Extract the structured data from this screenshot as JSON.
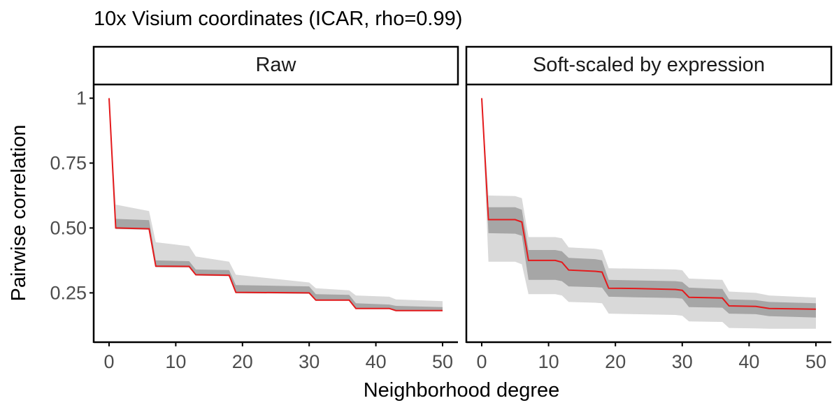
{
  "title": "10x Visium coordinates (ICAR, rho=0.99)",
  "xlabel": "Neighborhood degree",
  "ylabel": "Pairwise correlation",
  "colors": {
    "line": "#e41a1c",
    "inner_band": "#a6a6a6",
    "outer_band": "#d9d9d9",
    "axis": "#000000",
    "tick_text": "#4d4d4d"
  },
  "chart_data": {
    "type": "line",
    "xlim": [
      0,
      50
    ],
    "ylim": [
      0.06,
      1.05
    ],
    "x_ticks": [
      0,
      10,
      20,
      30,
      40,
      50
    ],
    "x_tick_labels": [
      "0",
      "10",
      "20",
      "30",
      "40",
      "50"
    ],
    "y_ticks": [
      0.25,
      0.5,
      0.75,
      1.0
    ],
    "y_tick_labels": [
      "0.25",
      "0.50",
      "0.75",
      "1"
    ],
    "grid": false,
    "panels": [
      {
        "label": "Raw",
        "x": [
          0,
          1,
          6,
          7,
          12,
          13,
          18,
          19,
          30,
          31,
          36,
          37,
          42,
          43,
          50
        ],
        "mean": [
          1.0,
          0.5,
          0.497,
          0.353,
          0.352,
          0.32,
          0.318,
          0.252,
          0.25,
          0.222,
          0.222,
          0.19,
          0.19,
          0.182,
          0.182
        ],
        "inner_lo": [
          1.0,
          0.497,
          0.494,
          0.35,
          0.349,
          0.317,
          0.315,
          0.249,
          0.247,
          0.22,
          0.22,
          0.188,
          0.188,
          0.18,
          0.18
        ],
        "inner_hi": [
          1.0,
          0.535,
          0.53,
          0.375,
          0.372,
          0.34,
          0.338,
          0.28,
          0.275,
          0.245,
          0.242,
          0.21,
          0.205,
          0.2,
          0.195
        ],
        "outer_lo": [
          1.0,
          0.495,
          0.493,
          0.348,
          0.347,
          0.316,
          0.314,
          0.248,
          0.246,
          0.219,
          0.219,
          0.187,
          0.187,
          0.179,
          0.179
        ],
        "outer_hi": [
          1.0,
          0.59,
          0.565,
          0.445,
          0.43,
          0.39,
          0.37,
          0.32,
          0.29,
          0.268,
          0.26,
          0.24,
          0.235,
          0.225,
          0.218
        ]
      },
      {
        "label": "Soft-scaled by expression",
        "x": [
          0,
          1,
          5,
          6,
          7,
          11,
          12,
          13,
          17,
          18,
          19,
          23,
          29,
          30,
          31,
          36,
          37,
          41,
          43,
          50
        ],
        "mean": [
          1.0,
          0.532,
          0.532,
          0.523,
          0.375,
          0.375,
          0.368,
          0.338,
          0.333,
          0.33,
          0.268,
          0.267,
          0.263,
          0.26,
          0.233,
          0.23,
          0.2,
          0.198,
          0.19,
          0.187
        ],
        "inner_lo": [
          1.0,
          0.48,
          0.478,
          0.47,
          0.3,
          0.3,
          0.295,
          0.275,
          0.272,
          0.27,
          0.235,
          0.233,
          0.23,
          0.228,
          0.195,
          0.193,
          0.17,
          0.168,
          0.16,
          0.155
        ],
        "inner_hi": [
          1.0,
          0.58,
          0.58,
          0.57,
          0.415,
          0.415,
          0.41,
          0.385,
          0.38,
          0.375,
          0.3,
          0.298,
          0.295,
          0.292,
          0.27,
          0.265,
          0.225,
          0.222,
          0.215,
          0.21
        ],
        "outer_lo": [
          1.0,
          0.37,
          0.37,
          0.36,
          0.245,
          0.245,
          0.24,
          0.215,
          0.212,
          0.21,
          0.17,
          0.168,
          0.165,
          0.162,
          0.14,
          0.138,
          0.115,
          0.113,
          0.112,
          0.112
        ],
        "outer_hi": [
          1.0,
          0.625,
          0.623,
          0.615,
          0.465,
          0.465,
          0.46,
          0.425,
          0.42,
          0.415,
          0.345,
          0.343,
          0.34,
          0.337,
          0.305,
          0.3,
          0.255,
          0.25,
          0.24,
          0.232
        ]
      }
    ]
  }
}
